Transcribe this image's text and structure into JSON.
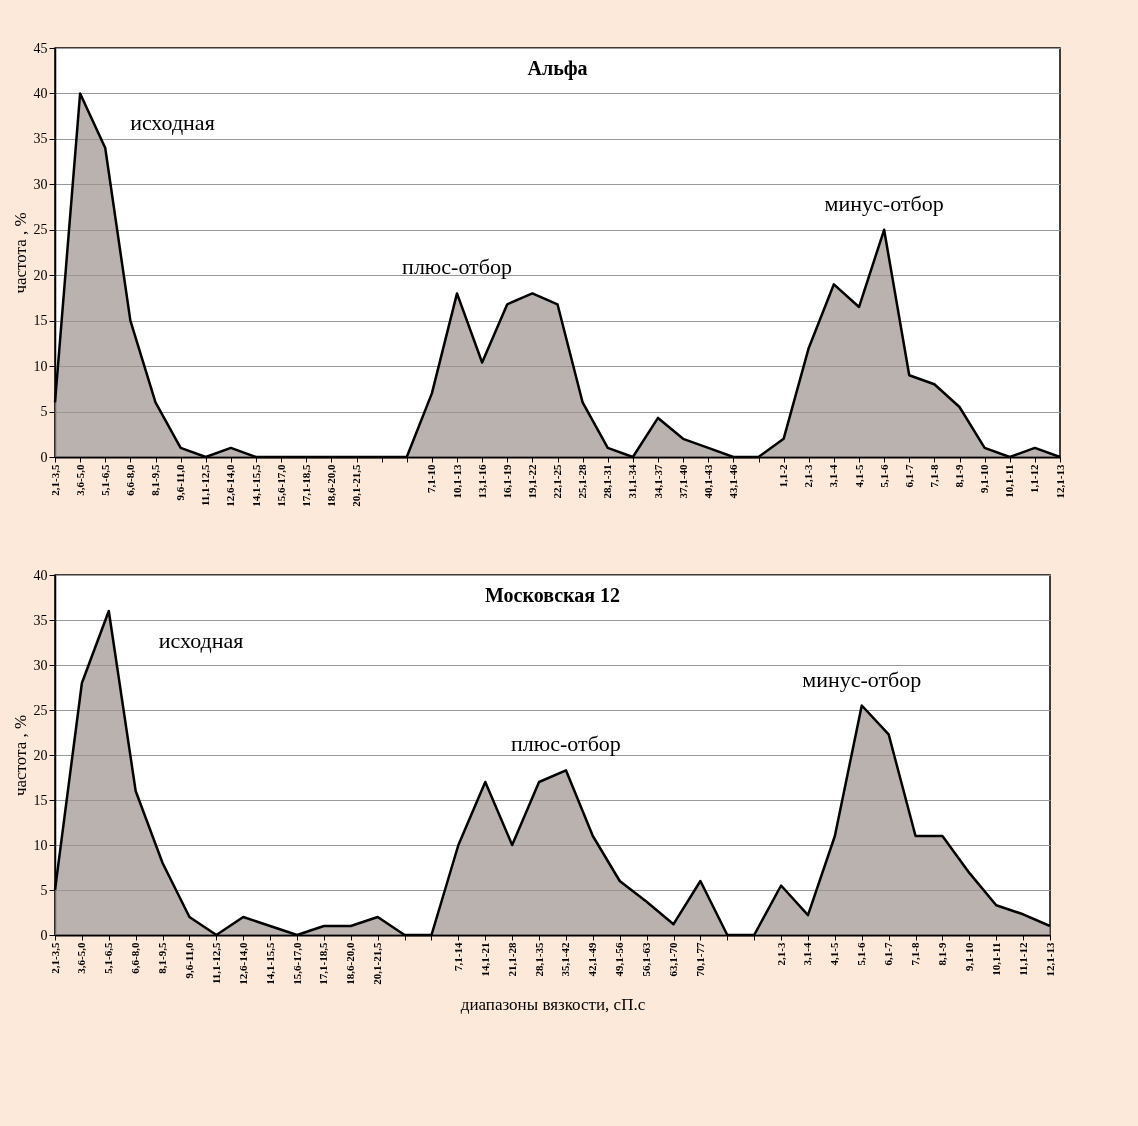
{
  "chart_data": [
    {
      "type": "area",
      "title": "Альфа",
      "ylabel": "частота , %",
      "color": "#9b928c",
      "grid": "y",
      "ylim": [
        0,
        45
      ],
      "yticks": [
        0,
        5,
        10,
        15,
        20,
        25,
        30,
        35,
        40,
        45
      ],
      "categories": [
        "2,1-3,5",
        "3,6-5,0",
        "5,1-6,5",
        "6,6-8,0",
        "8,1-9,5",
        "9,6-11,0",
        "11,1-12,5",
        "12,6-14,0",
        "14,1-15,5",
        "15,6-17,0",
        "17,1-18,5",
        "18,6-20,0",
        "20,1-21,5",
        null,
        null,
        "7,1-10",
        "10,1-13",
        "13,1-16",
        "16,1-19",
        "19,1-22",
        "22,1-25",
        "25,1-28",
        "28,1-31",
        "31,1-34",
        "34,1-37",
        "37,1-40",
        "40,1-43",
        "43,1-46",
        null,
        "1,1-2",
        "2,1-3",
        "3,1-4",
        "4,1-5",
        "5,1-6",
        "6,1-7",
        "7,1-8",
        "8,1-9",
        "9,1-10",
        "10,1-11",
        "1,1-12",
        "12,1-13"
      ],
      "values": [
        6,
        40,
        34,
        15,
        6,
        1,
        0,
        1,
        0,
        0,
        0,
        0,
        0,
        0,
        0,
        7,
        18,
        10.4,
        16.8,
        18,
        16.8,
        6,
        1,
        0,
        4.3,
        2,
        1,
        0,
        0,
        2,
        12,
        19,
        16.5,
        25,
        9,
        8,
        5.5,
        1,
        0,
        1,
        0
      ],
      "annotations": [
        "исходная",
        "плюс-отбор",
        "минус-отбор"
      ]
    },
    {
      "type": "area",
      "title": "Московская 12",
      "ylabel": "частота , %",
      "xlabel": "диапазоны  вязкости,  сП.с",
      "color": "#9b928c",
      "grid": "y",
      "ylim": [
        0,
        40
      ],
      "yticks": [
        0,
        5,
        10,
        15,
        20,
        25,
        30,
        35,
        40
      ],
      "categories": [
        "2,1-3,5",
        "3,6-5,0",
        "5,1-6,5",
        "6,6-8,0",
        "8,1-9,5",
        "9,6-11,0",
        "11,1-12,5",
        "12,6-14,0",
        "14,1-15,5",
        "15,6-17,0",
        "17,1-18,5",
        "18,6-20,0",
        "20,1-21,5",
        null,
        null,
        "7,1-14",
        "14,1-21",
        "21,1-28",
        "28,1-35",
        "35,1-42",
        "42,1-49",
        "49,1-56",
        "56,1-63",
        "63,1-70",
        "70,1-77",
        null,
        null,
        "2,1-3",
        "3,1-4",
        "4,1-5",
        "5,1-6",
        "6,1-7",
        "7,1-8",
        "8,1-9",
        "9,1-10",
        "10,1-11",
        "11,1-12",
        "12,1-13"
      ],
      "values": [
        5,
        28,
        36,
        16,
        8,
        2,
        0,
        2,
        1,
        0,
        1,
        1,
        2,
        0,
        0,
        10,
        17,
        10,
        17,
        18.3,
        11,
        6,
        3.7,
        1.2,
        6,
        0,
        0,
        5.5,
        2.2,
        11,
        25.5,
        22.3,
        11,
        11,
        6.9,
        3.3,
        2.3,
        1
      ],
      "annotations": [
        "исходная",
        "плюс-отбор",
        "минус-отбор"
      ]
    }
  ]
}
